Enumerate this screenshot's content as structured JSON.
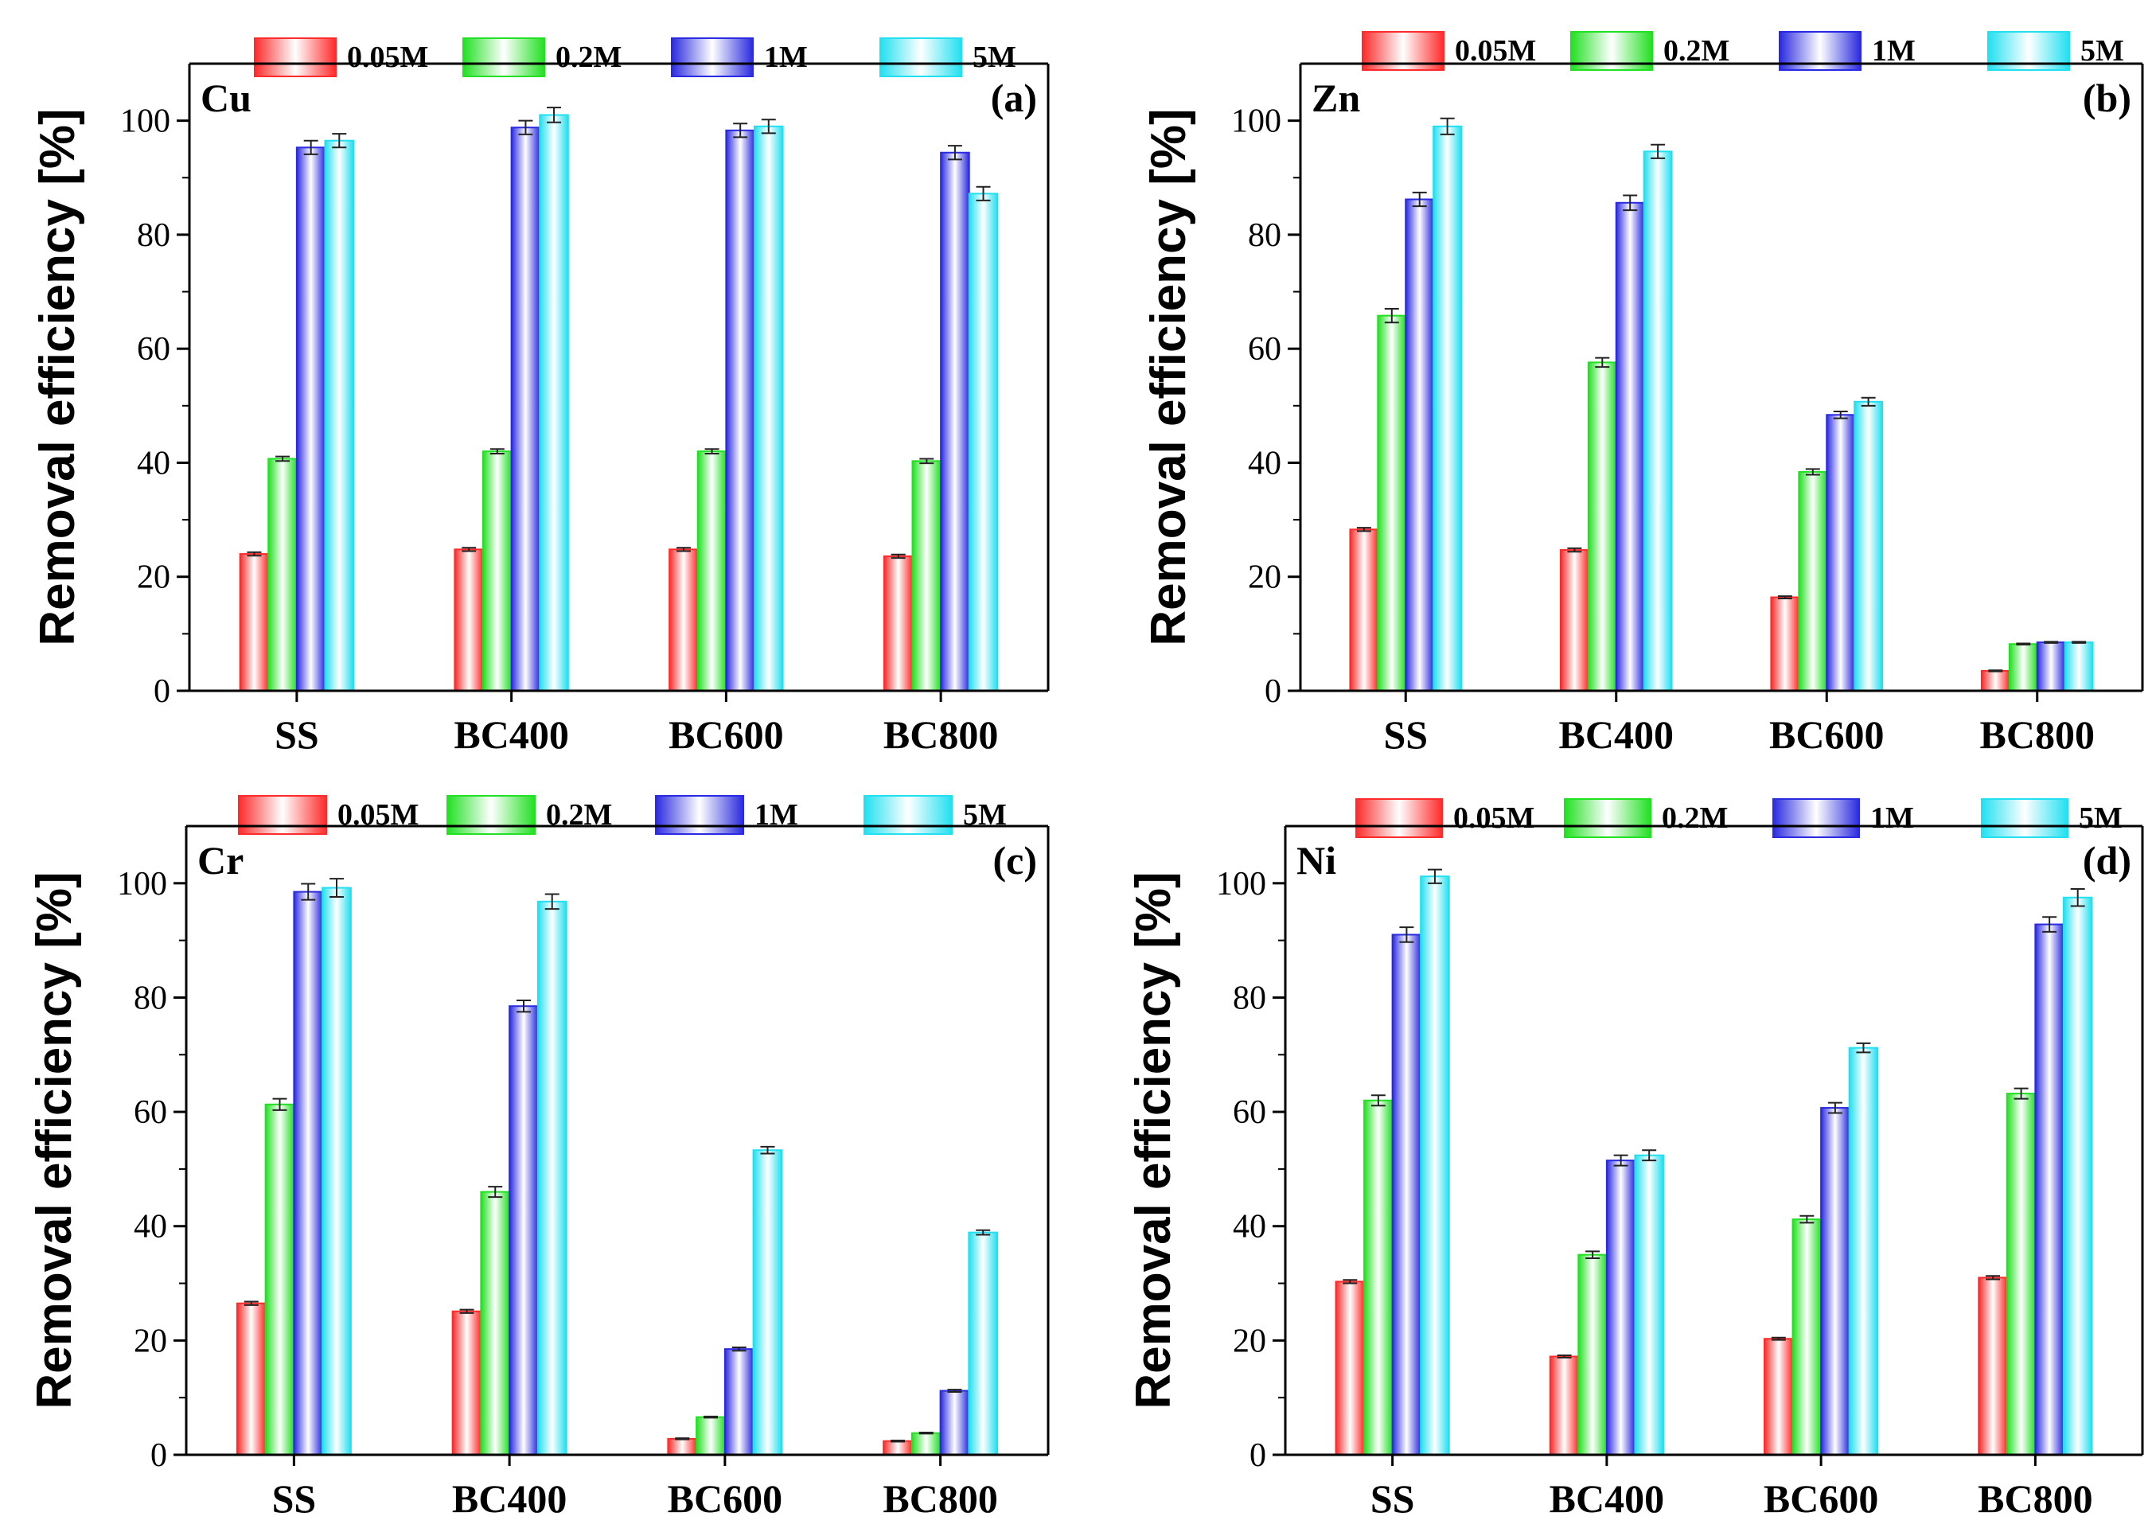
{
  "chart_data": [
    {
      "type": "bar",
      "panel_label": "(a)",
      "metal": "Cu",
      "categories": [
        "SS",
        "BC400",
        "BC600",
        "BC800"
      ],
      "ylabel": "Removal efficiency [%]",
      "ylim": [
        0,
        110
      ],
      "yticks": [
        0,
        20,
        40,
        60,
        80,
        100
      ],
      "legend_position": "top",
      "series": [
        {
          "name": "0.05M",
          "color": "#ff2a2a",
          "values": [
            24.0,
            24.8,
            24.8,
            23.6
          ],
          "errors": [
            0.3,
            0.3,
            0.3,
            0.3
          ]
        },
        {
          "name": "0.2M",
          "color": "#22e022",
          "values": [
            40.7,
            42.0,
            42.0,
            40.3
          ],
          "errors": [
            0.4,
            0.4,
            0.4,
            0.4
          ]
        },
        {
          "name": "1M",
          "color": "#2a2ae0",
          "values": [
            95.3,
            98.8,
            98.3,
            94.4
          ],
          "errors": [
            1.2,
            1.2,
            1.2,
            1.2
          ]
        },
        {
          "name": "5M",
          "color": "#22e0f0",
          "values": [
            96.5,
            101.0,
            99.0,
            87.2
          ],
          "errors": [
            1.2,
            1.3,
            1.2,
            1.2
          ]
        }
      ]
    },
    {
      "type": "bar",
      "panel_label": "(b)",
      "metal": "Zn",
      "categories": [
        "SS",
        "BC400",
        "BC600",
        "BC800"
      ],
      "ylabel": "Removal efficiency [%]",
      "ylim": [
        0,
        110
      ],
      "yticks": [
        0,
        20,
        40,
        60,
        80,
        100
      ],
      "legend_position": "top",
      "series": [
        {
          "name": "0.05M",
          "color": "#ff2a2a",
          "values": [
            28.3,
            24.7,
            16.4,
            3.5
          ],
          "errors": [
            0.3,
            0.3,
            0.2,
            0.1
          ]
        },
        {
          "name": "0.2M",
          "color": "#22e022",
          "values": [
            65.8,
            57.6,
            38.4,
            8.2
          ],
          "errors": [
            1.2,
            0.8,
            0.5,
            0.1
          ]
        },
        {
          "name": "1M",
          "color": "#2a2ae0",
          "values": [
            86.2,
            85.6,
            48.4,
            8.5
          ],
          "errors": [
            1.2,
            1.3,
            0.6,
            0.1
          ]
        },
        {
          "name": "5M",
          "color": "#22e0f0",
          "values": [
            99.0,
            94.6,
            50.7,
            8.5
          ],
          "errors": [
            1.4,
            1.2,
            0.7,
            0.1
          ]
        }
      ]
    },
    {
      "type": "bar",
      "panel_label": "(c)",
      "metal": "Cr",
      "categories": [
        "SS",
        "BC400",
        "BC600",
        "BC800"
      ],
      "ylabel": "Removal efficiency [%]",
      "ylim": [
        0,
        110
      ],
      "yticks": [
        0,
        20,
        40,
        60,
        80,
        100
      ],
      "legend_position": "top",
      "series": [
        {
          "name": "0.05M",
          "color": "#ff2a2a",
          "values": [
            26.5,
            25.1,
            2.8,
            2.4
          ],
          "errors": [
            0.3,
            0.3,
            0.1,
            0.1
          ]
        },
        {
          "name": "0.2M",
          "color": "#22e022",
          "values": [
            61.3,
            46.0,
            6.6,
            3.8
          ],
          "errors": [
            1.0,
            0.9,
            0.1,
            0.1
          ]
        },
        {
          "name": "1M",
          "color": "#2a2ae0",
          "values": [
            98.5,
            78.5,
            18.5,
            11.2
          ],
          "errors": [
            1.4,
            1.0,
            0.3,
            0.2
          ]
        },
        {
          "name": "5M",
          "color": "#22e0f0",
          "values": [
            99.2,
            96.8,
            53.3,
            38.9
          ],
          "errors": [
            1.6,
            1.3,
            0.6,
            0.4
          ]
        }
      ]
    },
    {
      "type": "bar",
      "panel_label": "(d)",
      "metal": "Ni",
      "categories": [
        "SS",
        "BC400",
        "BC600",
        "BC800"
      ],
      "ylabel": "Removal efficiency [%]",
      "ylim": [
        0,
        110
      ],
      "yticks": [
        0,
        20,
        40,
        60,
        80,
        100
      ],
      "legend_position": "top",
      "series": [
        {
          "name": "0.05M",
          "color": "#ff2a2a",
          "values": [
            30.3,
            17.2,
            20.3,
            31.0
          ],
          "errors": [
            0.3,
            0.2,
            0.2,
            0.3
          ]
        },
        {
          "name": "0.2M",
          "color": "#22e022",
          "values": [
            62.0,
            35.0,
            41.2,
            63.2
          ],
          "errors": [
            0.9,
            0.6,
            0.6,
            0.9
          ]
        },
        {
          "name": "1M",
          "color": "#2a2ae0",
          "values": [
            91.0,
            51.5,
            60.7,
            92.8
          ],
          "errors": [
            1.3,
            0.9,
            0.9,
            1.3
          ]
        },
        {
          "name": "5M",
          "color": "#22e0f0",
          "values": [
            101.2,
            52.4,
            71.2,
            97.5
          ],
          "errors": [
            1.2,
            0.9,
            0.8,
            1.5
          ]
        }
      ]
    }
  ]
}
